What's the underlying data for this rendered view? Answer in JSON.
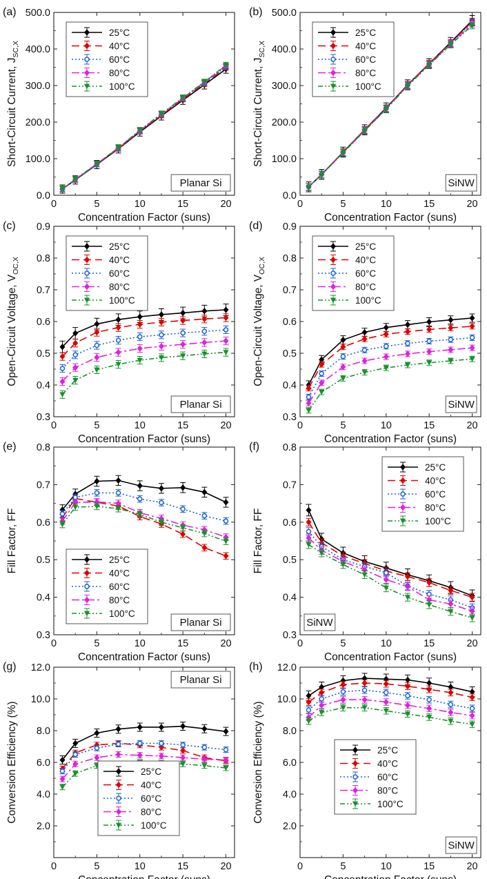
{
  "figure": {
    "series_styles": [
      {
        "color": "#000000",
        "dash": "",
        "marker": "diamond"
      },
      {
        "color": "#e00000",
        "dash": "11,6",
        "marker": "diamond"
      },
      {
        "color": "#1560d6",
        "dash": "2,3",
        "marker": "circle"
      },
      {
        "color": "#e020e0",
        "dash": "11,4,3,4",
        "marker": "diamond"
      },
      {
        "color": "#15922a",
        "dash": "7,3,2,3,2,3",
        "marker": "triangle"
      }
    ]
  },
  "chart_data": [
    {
      "type": "line",
      "panel_label": "(a)",
      "sample_label": "Planar Si",
      "xlabel": "Concentration Factor (suns)",
      "ylabel": "Short-Circuit Current, J",
      "ylabel_sub": "SC,X",
      "xlim": [
        0,
        21
      ],
      "ylim": [
        0,
        500
      ],
      "xticks": [
        0,
        5,
        10,
        15,
        20
      ],
      "yticks": [
        0,
        100,
        200,
        300,
        400,
        500
      ],
      "ytick_labels": [
        "0.0",
        "100.0",
        "200.0",
        "300.0",
        "400.0",
        "500.0"
      ],
      "legend_position": "top-left",
      "x": [
        1,
        2.5,
        5,
        7.5,
        10,
        12.5,
        15,
        17.5,
        20
      ],
      "series": [
        {
          "name": "25°C",
          "values": [
            17,
            42,
            84,
            127,
            173,
            217,
            260,
            302,
            345
          ]
        },
        {
          "name": "40°C",
          "values": [
            17,
            43,
            85,
            128,
            175,
            219,
            263,
            305,
            350
          ]
        },
        {
          "name": "60°C",
          "values": [
            17,
            43,
            85,
            129,
            176,
            221,
            265,
            307,
            352
          ]
        },
        {
          "name": "80°C",
          "values": [
            18,
            43,
            86,
            130,
            177,
            222,
            266,
            309,
            355
          ]
        },
        {
          "name": "100°C",
          "values": [
            18,
            44,
            86,
            130,
            178,
            223,
            267,
            310,
            356
          ]
        }
      ]
    },
    {
      "type": "line",
      "panel_label": "(b)",
      "sample_label": "SiNW",
      "xlabel": "Concentration Factor (suns)",
      "ylabel": "Short-Circuit Current, J",
      "ylabel_sub": "SC,X",
      "xlim": [
        0,
        21
      ],
      "ylim": [
        0,
        500
      ],
      "xticks": [
        0,
        5,
        10,
        15,
        20
      ],
      "yticks": [
        0,
        100,
        200,
        300,
        400,
        500
      ],
      "ytick_labels": [
        "0.0",
        "100.0",
        "200.0",
        "300.0",
        "400.0",
        "500.0"
      ],
      "legend_position": "top-left",
      "x": [
        1,
        2.5,
        5,
        7.5,
        10,
        12.5,
        15,
        17.5,
        20
      ],
      "series": [
        {
          "name": "25°C",
          "values": [
            23,
            57,
            118,
            179,
            239,
            302,
            360,
            418,
            478
          ]
        },
        {
          "name": "40°C",
          "values": [
            23,
            57,
            118,
            179,
            238,
            302,
            360,
            417,
            475
          ]
        },
        {
          "name": "60°C",
          "values": [
            23,
            57,
            117,
            178,
            237,
            301,
            358,
            415,
            472
          ]
        },
        {
          "name": "80°C",
          "values": [
            23,
            56,
            116,
            177,
            236,
            300,
            357,
            414,
            468
          ]
        },
        {
          "name": "100°C",
          "values": [
            22,
            56,
            116,
            176,
            235,
            299,
            356,
            412,
            464
          ]
        }
      ]
    },
    {
      "type": "line",
      "panel_label": "(c)",
      "sample_label": "Planar Si",
      "xlabel": "Concentration Factor (suns)",
      "ylabel": "Open-Circuit Voltage, V",
      "ylabel_sub": "OC,X",
      "xlim": [
        0,
        21
      ],
      "ylim": [
        0.3,
        0.9
      ],
      "xticks": [
        0,
        5,
        10,
        15,
        20
      ],
      "yticks": [
        0.3,
        0.4,
        0.5,
        0.6,
        0.7,
        0.8,
        0.9
      ],
      "ytick_labels": [
        "0.3",
        "0.4",
        "0.5",
        "0.6",
        "0.7",
        "0.8",
        "0.9"
      ],
      "legend_position": "top-left",
      "x": [
        1,
        2.5,
        5,
        7.5,
        10,
        12.5,
        15,
        17.5,
        20
      ],
      "series": [
        {
          "name": "25°C",
          "values": [
            0.52,
            0.563,
            0.592,
            0.606,
            0.615,
            0.622,
            0.627,
            0.633,
            0.637
          ]
        },
        {
          "name": "40°C",
          "values": [
            0.49,
            0.532,
            0.566,
            0.581,
            0.591,
            0.598,
            0.603,
            0.608,
            0.612
          ]
        },
        {
          "name": "60°C",
          "values": [
            0.452,
            0.495,
            0.525,
            0.541,
            0.552,
            0.558,
            0.564,
            0.569,
            0.574
          ]
        },
        {
          "name": "80°C",
          "values": [
            0.411,
            0.455,
            0.487,
            0.503,
            0.515,
            0.522,
            0.528,
            0.534,
            0.539
          ]
        },
        {
          "name": "100°C",
          "values": [
            0.37,
            0.415,
            0.448,
            0.465,
            0.478,
            0.486,
            0.492,
            0.498,
            0.503
          ]
        }
      ]
    },
    {
      "type": "line",
      "panel_label": "(d)",
      "sample_label": "SiNW",
      "xlabel": "Concentration Factor (suns)",
      "ylabel": "Open-Circuit Voltage, V",
      "ylabel_sub": "OC,X",
      "xlim": [
        0,
        21
      ],
      "ylim": [
        0.3,
        0.9
      ],
      "xticks": [
        0,
        5,
        10,
        15,
        20
      ],
      "yticks": [
        0.3,
        0.4,
        0.5,
        0.6,
        0.7,
        0.8,
        0.9
      ],
      "ytick_labels": [
        "0.3",
        "0.4",
        "0.5",
        "0.6",
        "0.7",
        "0.8",
        "0.9"
      ],
      "legend_position": "top-left",
      "x": [
        1,
        2.5,
        5,
        7.5,
        10,
        12.5,
        15,
        17.5,
        20
      ],
      "series": [
        {
          "name": "25°C",
          "values": [
            0.4,
            0.48,
            0.542,
            0.566,
            0.581,
            0.59,
            0.599,
            0.605,
            0.611
          ]
        },
        {
          "name": "40°C",
          "values": [
            0.39,
            0.465,
            0.52,
            0.545,
            0.56,
            0.568,
            0.575,
            0.58,
            0.585
          ]
        },
        {
          "name": "60°C",
          "values": [
            0.362,
            0.436,
            0.49,
            0.51,
            0.522,
            0.531,
            0.538,
            0.543,
            0.549
          ]
        },
        {
          "name": "80°C",
          "values": [
            0.343,
            0.407,
            0.457,
            0.476,
            0.489,
            0.498,
            0.505,
            0.511,
            0.517
          ]
        },
        {
          "name": "100°C",
          "values": [
            0.32,
            0.378,
            0.421,
            0.44,
            0.454,
            0.463,
            0.47,
            0.476,
            0.482
          ]
        }
      ]
    },
    {
      "type": "line",
      "panel_label": "(e)",
      "sample_label": "Planar Si",
      "xlabel": "Concentration Factor (suns)",
      "ylabel": "Fill Factor, FF",
      "ylabel_sub": "",
      "xlim": [
        0,
        21
      ],
      "ylim": [
        0.3,
        0.8
      ],
      "xticks": [
        0,
        5,
        10,
        15,
        20
      ],
      "yticks": [
        0.3,
        0.4,
        0.5,
        0.6,
        0.7,
        0.8
      ],
      "ytick_labels": [
        "0.3",
        "0.4",
        "0.5",
        "0.6",
        "0.7",
        "0.8"
      ],
      "legend_position": "bottom-left",
      "x": [
        1,
        2.5,
        5,
        7.5,
        10,
        12.5,
        15,
        17.5,
        20
      ],
      "series": [
        {
          "name": "25°C",
          "values": [
            0.633,
            0.675,
            0.709,
            0.711,
            0.697,
            0.69,
            0.692,
            0.68,
            0.653
          ]
        },
        {
          "name": "40°C",
          "values": [
            0.612,
            0.663,
            0.653,
            0.643,
            0.615,
            0.595,
            0.568,
            0.532,
            0.51
          ]
        },
        {
          "name": "60°C",
          "values": [
            0.622,
            0.666,
            0.678,
            0.678,
            0.662,
            0.652,
            0.635,
            0.617,
            0.603
          ]
        },
        {
          "name": "80°C",
          "values": [
            0.603,
            0.652,
            0.654,
            0.65,
            0.625,
            0.61,
            0.592,
            0.58,
            0.56
          ]
        },
        {
          "name": "100°C",
          "values": [
            0.594,
            0.64,
            0.642,
            0.636,
            0.621,
            0.6,
            0.585,
            0.57,
            0.549
          ]
        }
      ]
    },
    {
      "type": "line",
      "panel_label": "(f)",
      "sample_label": "SiNW",
      "xlabel": "Concentration Factor (suns)",
      "ylabel": "Fill Factor, FF",
      "ylabel_sub": "",
      "xlim": [
        0,
        21
      ],
      "ylim": [
        0.3,
        0.8
      ],
      "xticks": [
        0,
        5,
        10,
        15,
        20
      ],
      "yticks": [
        0.3,
        0.4,
        0.5,
        0.6,
        0.7,
        0.8
      ],
      "ytick_labels": [
        "0.3",
        "0.4",
        "0.5",
        "0.6",
        "0.7",
        "0.8"
      ],
      "legend_position": "top-right",
      "x": [
        1,
        2.5,
        5,
        7.5,
        10,
        12.5,
        15,
        17.5,
        20
      ],
      "series": [
        {
          "name": "25°C",
          "values": [
            0.632,
            0.555,
            0.518,
            0.495,
            0.478,
            0.46,
            0.444,
            0.426,
            0.404
          ]
        },
        {
          "name": "40°C",
          "values": [
            0.6,
            0.545,
            0.51,
            0.49,
            0.47,
            0.455,
            0.439,
            0.418,
            0.4
          ]
        },
        {
          "name": "60°C",
          "values": [
            0.575,
            0.535,
            0.5,
            0.482,
            0.465,
            0.43,
            0.408,
            0.393,
            0.372
          ]
        },
        {
          "name": "80°C",
          "values": [
            0.558,
            0.525,
            0.495,
            0.473,
            0.447,
            0.428,
            0.393,
            0.382,
            0.363
          ]
        },
        {
          "name": "100°C",
          "values": [
            0.54,
            0.518,
            0.487,
            0.46,
            0.425,
            0.4,
            0.38,
            0.362,
            0.345
          ]
        }
      ]
    },
    {
      "type": "line",
      "panel_label": "(g)",
      "sample_label": "Planar Si",
      "xlabel": "Concentration Factor (suns)",
      "ylabel": "Conversion Efficiency (%)",
      "ylabel_sub": "",
      "xlim": [
        0,
        21
      ],
      "ylim": [
        0,
        12
      ],
      "xticks": [
        0,
        5,
        10,
        15,
        20
      ],
      "yticks": [
        2,
        4,
        6,
        8,
        10,
        12
      ],
      "ytick_labels": [
        "2.0",
        "4.0",
        "6.0",
        "8.0",
        "10.0",
        "12.0"
      ],
      "legend_position": "bottom-center",
      "x": [
        1,
        2.5,
        5,
        7.5,
        10,
        12.5,
        15,
        17.5,
        20
      ],
      "series": [
        {
          "name": "25°C",
          "values": [
            6.15,
            7.2,
            7.85,
            8.1,
            8.22,
            8.22,
            8.28,
            8.12,
            7.95
          ]
        },
        {
          "name": "40°C",
          "values": [
            5.6,
            6.6,
            7.1,
            7.2,
            7.1,
            6.95,
            6.75,
            6.3,
            6.1
          ]
        },
        {
          "name": "60°C",
          "values": [
            5.45,
            6.5,
            6.9,
            7.15,
            7.2,
            7.2,
            7.1,
            6.95,
            6.8
          ]
        },
        {
          "name": "80°C",
          "values": [
            4.95,
            5.9,
            6.3,
            6.5,
            6.45,
            6.4,
            6.3,
            6.2,
            6.15
          ]
        },
        {
          "name": "100°C",
          "values": [
            4.45,
            5.3,
            5.8,
            5.9,
            6.0,
            5.95,
            5.9,
            5.8,
            5.65
          ]
        }
      ]
    },
    {
      "type": "line",
      "panel_label": "(h)",
      "sample_label": "SiNW",
      "xlabel": "Concentration Factor (suns)",
      "ylabel": "Conversion Efficiency (%)",
      "ylabel_sub": "",
      "xlim": [
        0,
        21
      ],
      "ylim": [
        0,
        12
      ],
      "xticks": [
        0,
        5,
        10,
        15,
        20
      ],
      "yticks": [
        2,
        4,
        6,
        8,
        10,
        12
      ],
      "ytick_labels": [
        "2.0",
        "4.0",
        "6.0",
        "8.0",
        "10.0",
        "12.0"
      ],
      "legend_position": "middle-left",
      "x": [
        1,
        2.5,
        5,
        7.5,
        10,
        12.5,
        15,
        17.5,
        20
      ],
      "series": [
        {
          "name": "25°C",
          "values": [
            10.2,
            10.75,
            11.15,
            11.3,
            11.25,
            11.2,
            11.0,
            10.75,
            10.45
          ]
        },
        {
          "name": "40°C",
          "values": [
            9.8,
            10.4,
            10.9,
            11.0,
            10.95,
            10.8,
            10.6,
            10.4,
            10.1
          ]
        },
        {
          "name": "60°C",
          "values": [
            9.3,
            10.0,
            10.45,
            10.55,
            10.4,
            10.2,
            9.95,
            9.65,
            9.4
          ]
        },
        {
          "name": "80°C",
          "values": [
            8.85,
            9.6,
            9.95,
            9.95,
            9.8,
            9.6,
            9.4,
            9.15,
            8.95
          ]
        },
        {
          "name": "100°C",
          "values": [
            8.6,
            9.15,
            9.45,
            9.45,
            9.25,
            9.05,
            8.85,
            8.6,
            8.4
          ]
        }
      ]
    }
  ]
}
